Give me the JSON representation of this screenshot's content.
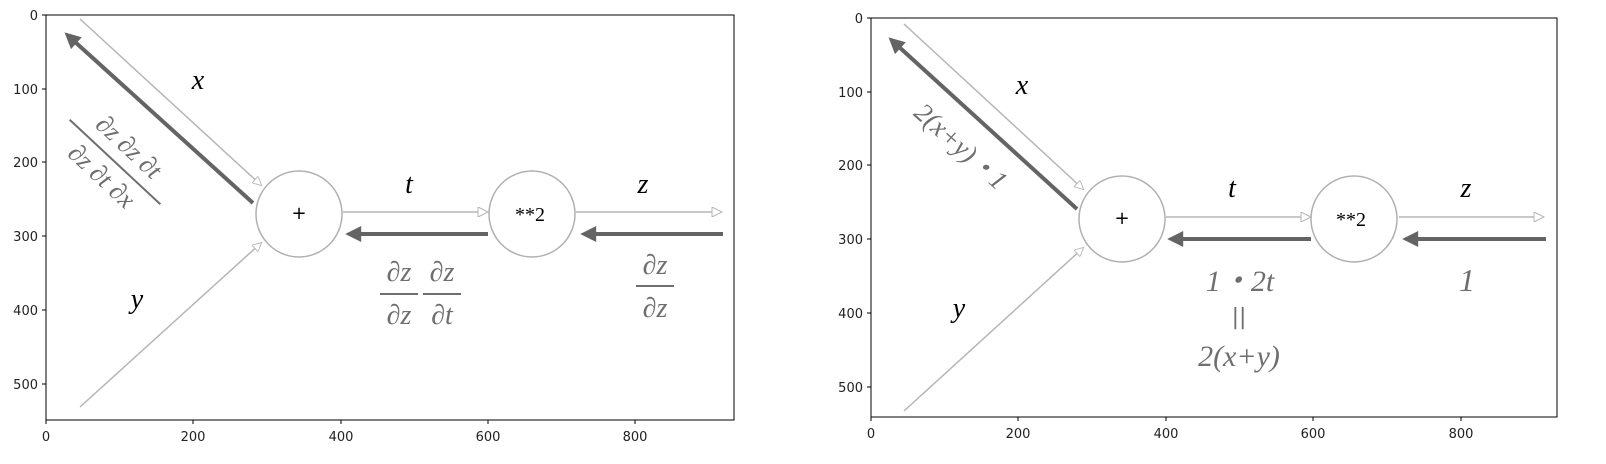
{
  "panels": [
    {
      "x_ticks": [
        "0",
        "200",
        "400",
        "600",
        "800"
      ],
      "y_ticks": [
        "0",
        "100",
        "200",
        "300",
        "400",
        "500"
      ],
      "nodes": {
        "add": "+",
        "square": "**2"
      },
      "forward_labels": {
        "x": "x",
        "y": "y",
        "t": "t",
        "z": "z"
      },
      "grad_x": "∂z ∂z ∂t / ∂z ∂t ∂x",
      "grad_t": "∂z ∂z / ∂z ∂t",
      "grad_z": "∂z / ∂z"
    },
    {
      "x_ticks": [
        "0",
        "200",
        "400",
        "600",
        "800"
      ],
      "y_ticks": [
        "0",
        "100",
        "200",
        "300",
        "400",
        "500"
      ],
      "nodes": {
        "add": "+",
        "square": "**2"
      },
      "forward_labels": {
        "x": "x",
        "y": "y",
        "t": "t",
        "z": "z"
      },
      "grad_x": "2(x+y)・1",
      "grad_t_top": "1・2t",
      "grad_t_eq": "||",
      "grad_t_bottom": "2(x+y)",
      "grad_z": "1"
    }
  ],
  "colors": {
    "forward_arrow": "#b5b5b5",
    "backward_arrow": "#646464",
    "gradient_text": "#6e6e6e",
    "node_stroke": "#b0b0b0"
  }
}
